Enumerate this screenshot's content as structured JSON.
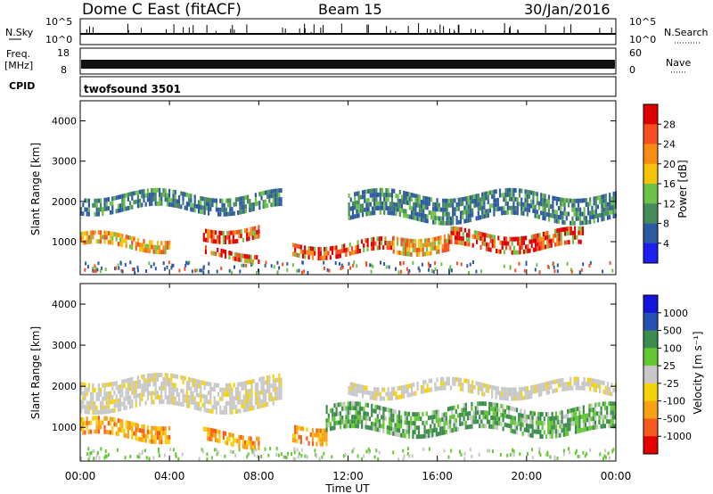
{
  "header": {
    "radar": "Dome C East (fitACF)",
    "beam": "Beam 15",
    "date": "30/Jan/2016"
  },
  "top_panels": {
    "nsky_label": "N.Sky",
    "nsky_ticks": [
      "10^5",
      "10^0"
    ],
    "nsearch_label": "N.Search",
    "nsearch_ticks": [
      "10^5",
      "10^0"
    ],
    "freq_label": "Freq.",
    "freq_unit": "[MHz]",
    "freq_ticks": [
      "18",
      "8"
    ],
    "nave_label": "Nave",
    "nave_ticks": [
      "60",
      "0"
    ],
    "cpid_label": "CPID",
    "cpid_value": "twofsound 3501"
  },
  "chart_data": [
    {
      "type": "heatmap",
      "name": "power",
      "ylabel": "Slant Range [km]",
      "yticks": [
        1000,
        2000,
        3000,
        4000
      ],
      "ylim": [
        180,
        4500
      ],
      "xlim": [
        0,
        24
      ],
      "colorbar": {
        "label": "Power [dB]",
        "ticks": [
          "28",
          "24",
          "20",
          "16",
          "12",
          "8",
          "4"
        ],
        "colors": [
          "#e00000",
          "#f5501e",
          "#fa8c14",
          "#f5c30a",
          "#6ec346",
          "#468c5a",
          "#2d5aa0",
          "#1e1ef0"
        ]
      },
      "bands": [
        {
          "t0": 0.0,
          "t1": 4.0,
          "r0": 850,
          "r1": 1150,
          "level": "mid"
        },
        {
          "t0": 5.5,
          "t1": 8.0,
          "r0": 600,
          "r1": 800,
          "level": "high"
        },
        {
          "t0": 5.5,
          "t1": 8.0,
          "r0": 1100,
          "r1": 1400,
          "level": "high"
        },
        {
          "t0": 9.5,
          "t1": 14.0,
          "r0": 750,
          "r1": 1000,
          "level": "high"
        },
        {
          "t0": 14.0,
          "t1": 16.5,
          "r0": 800,
          "r1": 1200,
          "level": "mid"
        },
        {
          "t0": 16.5,
          "t1": 22.5,
          "r0": 850,
          "r1": 1250,
          "level": "high"
        },
        {
          "t0": 0.0,
          "t1": 9.0,
          "r0": 1800,
          "r1": 2200,
          "level": "low"
        },
        {
          "t0": 12.0,
          "t1": 24.0,
          "r0": 1600,
          "r1": 2200,
          "level": "low"
        }
      ]
    },
    {
      "type": "heatmap",
      "name": "velocity",
      "xlabel": "Time UT",
      "xticks": [
        "00:00",
        "04:00",
        "08:00",
        "12:00",
        "16:00",
        "20:00",
        "00:00"
      ],
      "ylabel": "Slant Range [km]",
      "yticks": [
        1000,
        2000,
        3000,
        4000
      ],
      "ylim": [
        180,
        4500
      ],
      "xlim": [
        0,
        24
      ],
      "colorbar": {
        "label": "Velocity [m s⁻¹]",
        "ticks": [
          "1000",
          "500",
          "100",
          "25",
          "-25",
          "-100",
          "-500",
          "-1000"
        ],
        "colors": [
          "#1414dc",
          "#2850b4",
          "#3c8c50",
          "#64c832",
          "#c8c8c8",
          "#f5d20a",
          "#faa014",
          "#f55a1e",
          "#e60000"
        ]
      },
      "bands": [
        {
          "t0": 0.0,
          "t1": 4.0,
          "r0": 800,
          "r1": 1150,
          "level": "orange"
        },
        {
          "t0": 5.5,
          "t1": 8.0,
          "r0": 650,
          "r1": 900,
          "level": "orange"
        },
        {
          "t0": 0.0,
          "t1": 9.0,
          "r0": 1500,
          "r1": 2200,
          "level": "grey"
        },
        {
          "t0": 9.5,
          "t1": 11.0,
          "r0": 700,
          "r1": 1100,
          "level": "orange"
        },
        {
          "t0": 11.0,
          "t1": 24.0,
          "r0": 850,
          "r1": 1500,
          "level": "green"
        },
        {
          "t0": 12.0,
          "t1": 24.0,
          "r0": 1800,
          "r1": 2100,
          "level": "grey"
        }
      ]
    }
  ]
}
